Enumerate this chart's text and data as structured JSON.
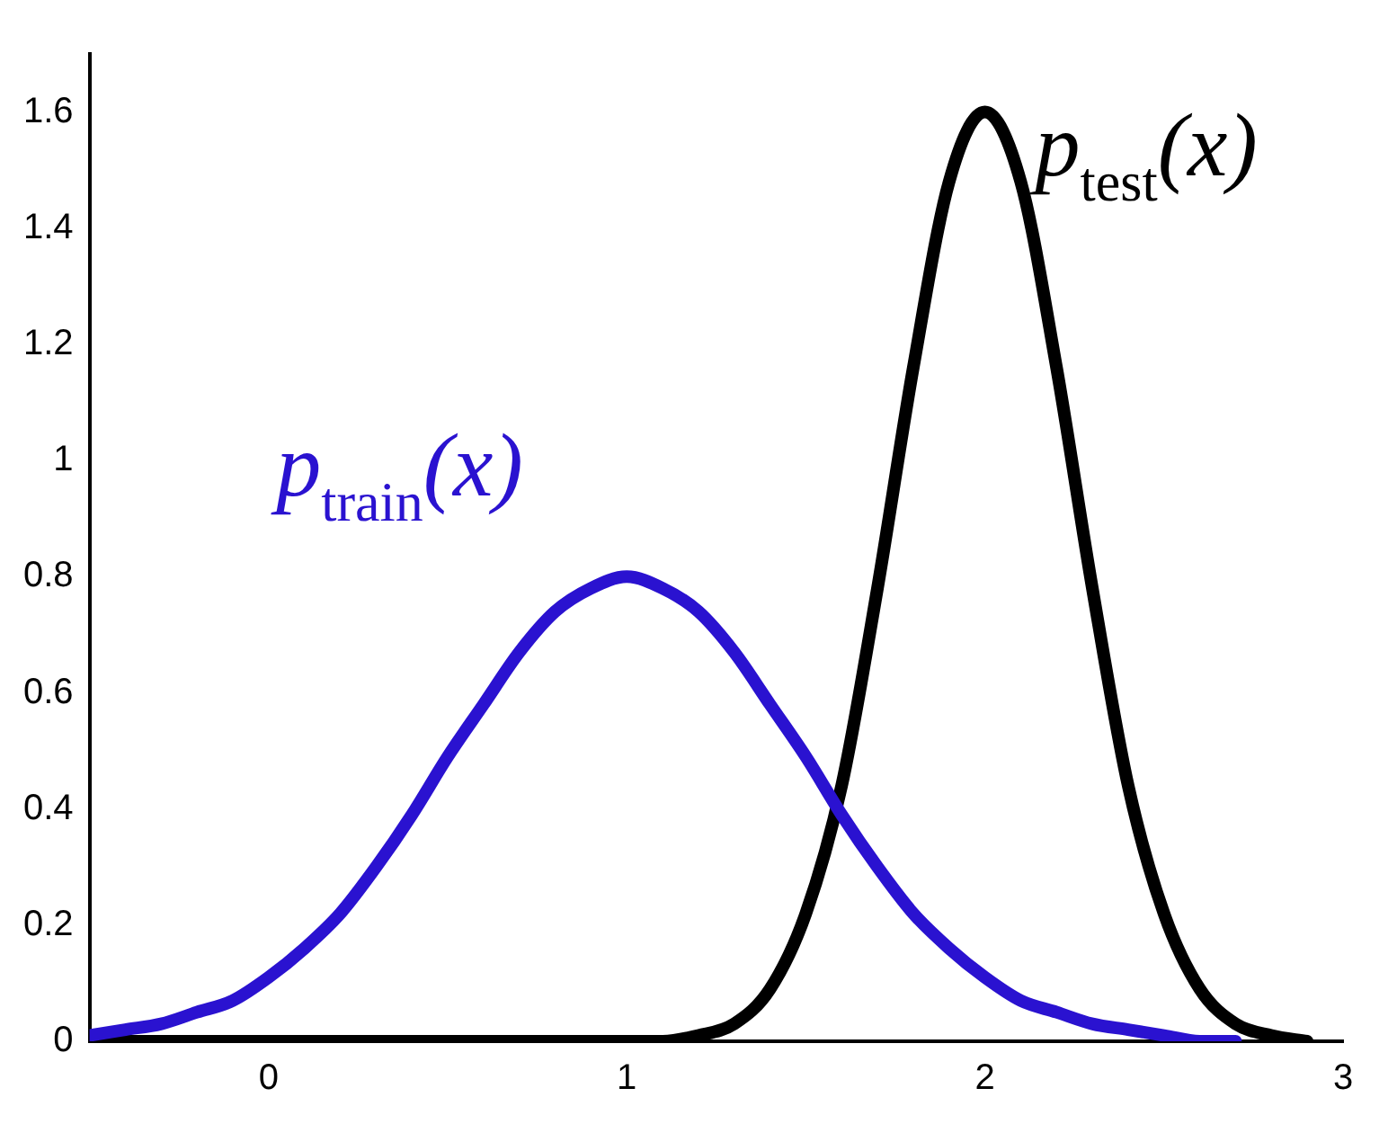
{
  "chart_data": {
    "type": "line",
    "xlim": [
      -0.5,
      3
    ],
    "xticks": [
      0,
      1,
      2,
      3
    ],
    "ylim": [
      0,
      1.7
    ],
    "yticks": [
      0,
      0.2,
      0.4,
      0.6,
      0.8,
      1,
      1.2,
      1.4,
      1.6
    ],
    "grid": false,
    "legend": false,
    "marker": "none",
    "line_style": "solid",
    "series": [
      {
        "name": "p$_{train}$(x)",
        "color": "#2a12d0",
        "x": [
          -0.5,
          -0.4,
          -0.3,
          -0.2,
          -0.1,
          0,
          0.1,
          0.2,
          0.3,
          0.4,
          0.5,
          0.6,
          0.7,
          0.8,
          0.9,
          1,
          1.1,
          1.2,
          1.3,
          1.4,
          1.5,
          1.6,
          1.7,
          1.8,
          1.9,
          2,
          2.1,
          2.2,
          2.3,
          2.4,
          2.5,
          2.6,
          2.7
        ],
        "values": [
          0.01,
          0.02,
          0.03,
          0.05,
          0.07,
          0.11,
          0.16,
          0.22,
          0.3,
          0.39,
          0.49,
          0.58,
          0.67,
          0.74,
          0.78,
          0.8,
          0.78,
          0.74,
          0.67,
          0.58,
          0.49,
          0.39,
          0.3,
          0.22,
          0.16,
          0.11,
          0.07,
          0.05,
          0.03,
          0.02,
          0.01,
          0,
          0
        ]
      },
      {
        "name": "p$_{test}$(x)",
        "color": "#000000",
        "x": [
          -0.5,
          1,
          1.1,
          1.2,
          1.3,
          1.4,
          1.5,
          1.6,
          1.7,
          1.8,
          1.9,
          2,
          2.1,
          2.2,
          2.3,
          2.4,
          2.5,
          2.6,
          2.7,
          2.8,
          2.9
        ],
        "values": [
          0,
          0,
          0,
          0.01,
          0.03,
          0.09,
          0.22,
          0.44,
          0.78,
          1.16,
          1.48,
          1.6,
          1.48,
          1.16,
          0.78,
          0.44,
          0.22,
          0.09,
          0.03,
          0.01,
          0
        ]
      }
    ]
  }
}
